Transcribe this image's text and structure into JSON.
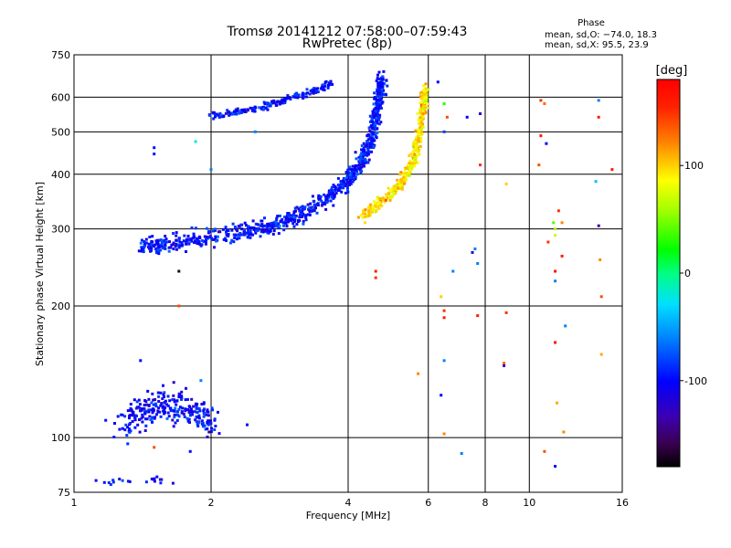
{
  "chart_data": {
    "type": "scatter",
    "title": "Tromsø 20141212 07:58:00–07:59:43",
    "subtitle": "RwPretec (8p)",
    "xlabel": "Frequency [MHz]",
    "ylabel": "Stationary phase Virtual Height [km]",
    "xscale": "log",
    "yscale": "log",
    "xlim": [
      1,
      16
    ],
    "ylim": [
      75,
      750
    ],
    "x_ticks": [
      "1",
      "2",
      "4",
      "6",
      "8",
      "10",
      "16"
    ],
    "x_tick_values": [
      1,
      2,
      4,
      6,
      8,
      10,
      16
    ],
    "y_ticks": [
      "750",
      "600",
      "500",
      "400",
      "300",
      "200",
      "100",
      "75"
    ],
    "y_tick_values": [
      750,
      600,
      500,
      400,
      300,
      200,
      100,
      75
    ],
    "grid": true,
    "colorbar": {
      "label": "[deg]",
      "range": [
        -180,
        180
      ],
      "ticks": [
        "100",
        "0",
        "-100"
      ],
      "tick_values": [
        100,
        0,
        -100
      ],
      "colormap": "rainbow"
    },
    "stats": {
      "heading": "Phase",
      "line_o": "mean, sd,O: −74.0, 18.3",
      "line_x": "mean, sd,X: 95.5, 23.9"
    },
    "traces": [
      {
        "name": "",
        "x": [
          1.4,
          1.6,
          2.0,
          2.4,
          2.8,
          3.2,
          3.6,
          4.0,
          4.3,
          4.5,
          4.6,
          4.7,
          4.75
        ],
        "y": [
          270,
          270,
          280,
          290,
          300,
          320,
          345,
          380,
          420,
          470,
          530,
          600,
          640
        ],
        "phase_mean": -95
      },
      {
        "name": "",
        "x": [
          4.3,
          4.7,
          5.1,
          5.4,
          5.6,
          5.75,
          5.85,
          5.9
        ],
        "y": [
          320,
          345,
          370,
          400,
          440,
          500,
          570,
          630
        ],
        "phase_mean": 95
      },
      {
        "name": "",
        "x": [
          2.0,
          2.3,
          2.6,
          2.9,
          3.2,
          3.5,
          3.7
        ],
        "y": [
          545,
          555,
          570,
          590,
          610,
          630,
          650
        ],
        "phase_mean": -95
      },
      {
        "name": "",
        "x": [
          1.25,
          1.4,
          1.55,
          1.7,
          1.85,
          2.0
        ],
        "y": [
          105,
          115,
          120,
          118,
          112,
          108
        ],
        "phase_mean": -100
      },
      {
        "name": "",
        "x": [
          1.1,
          1.35,
          1.5,
          1.6
        ],
        "y": [
          80,
          79,
          81,
          79
        ],
        "phase_mean": -100
      }
    ],
    "scatter_points": [
      {
        "x": 1.5,
        "y": 460,
        "phase": -95
      },
      {
        "x": 1.5,
        "y": 445,
        "phase": -95
      },
      {
        "x": 1.85,
        "y": 475,
        "phase": -20
      },
      {
        "x": 2.5,
        "y": 500,
        "phase": -60
      },
      {
        "x": 2.0,
        "y": 410,
        "phase": -60
      },
      {
        "x": 1.7,
        "y": 240,
        "phase": -170
      },
      {
        "x": 1.7,
        "y": 200,
        "phase": 140
      },
      {
        "x": 1.4,
        "y": 150,
        "phase": -100
      },
      {
        "x": 1.9,
        "y": 135,
        "phase": -60
      },
      {
        "x": 1.98,
        "y": 103,
        "phase": -150
      },
      {
        "x": 2.4,
        "y": 107,
        "phase": -100
      },
      {
        "x": 1.5,
        "y": 95,
        "phase": 140
      },
      {
        "x": 1.8,
        "y": 93,
        "phase": -100
      },
      {
        "x": 6.3,
        "y": 650,
        "phase": -100
      },
      {
        "x": 6.5,
        "y": 580,
        "phase": 30
      },
      {
        "x": 6.6,
        "y": 540,
        "phase": 140
      },
      {
        "x": 7.3,
        "y": 540,
        "phase": -100
      },
      {
        "x": 7.8,
        "y": 550,
        "phase": -120
      },
      {
        "x": 7.8,
        "y": 420,
        "phase": 150
      },
      {
        "x": 6.5,
        "y": 500,
        "phase": -80
      },
      {
        "x": 7.6,
        "y": 270,
        "phase": -60
      },
      {
        "x": 7.5,
        "y": 265,
        "phase": -120
      },
      {
        "x": 7.7,
        "y": 250,
        "phase": -60
      },
      {
        "x": 4.6,
        "y": 240,
        "phase": 160
      },
      {
        "x": 4.6,
        "y": 232,
        "phase": 150
      },
      {
        "x": 6.8,
        "y": 240,
        "phase": -60
      },
      {
        "x": 6.4,
        "y": 210,
        "phase": 100
      },
      {
        "x": 6.5,
        "y": 195,
        "phase": 150
      },
      {
        "x": 6.5,
        "y": 188,
        "phase": 160
      },
      {
        "x": 7.7,
        "y": 190,
        "phase": 160
      },
      {
        "x": 8.9,
        "y": 193,
        "phase": 150
      },
      {
        "x": 8.8,
        "y": 148,
        "phase": 130
      },
      {
        "x": 8.8,
        "y": 146,
        "phase": -130
      },
      {
        "x": 6.5,
        "y": 150,
        "phase": -60
      },
      {
        "x": 5.7,
        "y": 140,
        "phase": 120
      },
      {
        "x": 6.4,
        "y": 125,
        "phase": -100
      },
      {
        "x": 6.5,
        "y": 102,
        "phase": 120
      },
      {
        "x": 7.1,
        "y": 92,
        "phase": -60
      },
      {
        "x": 8.9,
        "y": 380,
        "phase": 100
      },
      {
        "x": 10.6,
        "y": 590,
        "phase": 150
      },
      {
        "x": 10.8,
        "y": 580,
        "phase": 130
      },
      {
        "x": 10.6,
        "y": 490,
        "phase": 160
      },
      {
        "x": 10.9,
        "y": 470,
        "phase": -100
      },
      {
        "x": 10.5,
        "y": 420,
        "phase": 140
      },
      {
        "x": 11.6,
        "y": 330,
        "phase": 150
      },
      {
        "x": 11.8,
        "y": 310,
        "phase": 120
      },
      {
        "x": 11.3,
        "y": 310,
        "phase": 40
      },
      {
        "x": 11.4,
        "y": 300,
        "phase": 60
      },
      {
        "x": 11.4,
        "y": 290,
        "phase": 70
      },
      {
        "x": 11.0,
        "y": 280,
        "phase": 150
      },
      {
        "x": 11.8,
        "y": 260,
        "phase": 160
      },
      {
        "x": 11.4,
        "y": 240,
        "phase": 170
      },
      {
        "x": 11.4,
        "y": 228,
        "phase": -60
      },
      {
        "x": 12.0,
        "y": 180,
        "phase": -60
      },
      {
        "x": 11.4,
        "y": 165,
        "phase": 170
      },
      {
        "x": 11.5,
        "y": 120,
        "phase": 110
      },
      {
        "x": 11.9,
        "y": 103,
        "phase": 120
      },
      {
        "x": 10.8,
        "y": 93,
        "phase": 140
      },
      {
        "x": 11.4,
        "y": 86,
        "phase": -100
      },
      {
        "x": 14.2,
        "y": 590,
        "phase": -60
      },
      {
        "x": 14.2,
        "y": 540,
        "phase": 160
      },
      {
        "x": 14.0,
        "y": 385,
        "phase": -40
      },
      {
        "x": 15.2,
        "y": 410,
        "phase": 160
      },
      {
        "x": 14.2,
        "y": 305,
        "phase": -140
      },
      {
        "x": 14.3,
        "y": 255,
        "phase": 120
      },
      {
        "x": 14.4,
        "y": 210,
        "phase": 140
      },
      {
        "x": 14.4,
        "y": 155,
        "phase": 110
      }
    ]
  }
}
